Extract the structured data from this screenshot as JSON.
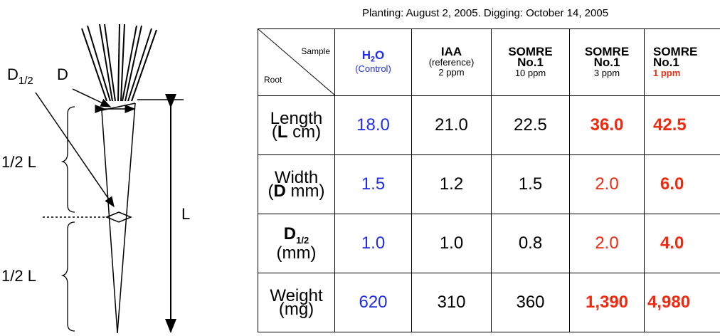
{
  "caption": "Planting: August 2, 2005. Digging: October 14, 2005",
  "diagram": {
    "d_label": "D",
    "d_half_main": "D",
    "d_half_sub": "1/2",
    "half_l_upper": "1/2 L",
    "half_l_lower": "1/2 L",
    "l_label": "L"
  },
  "table": {
    "corner_top": "Sample",
    "corner_bottom": "Root",
    "columns": [
      {
        "main": "H",
        "sub": "2",
        "rest": "O",
        "note": "(Control)"
      },
      {
        "line1": "IAA",
        "line2": "(reference)",
        "line3": "2 ppm"
      },
      {
        "line1": "SOMRE",
        "line2": "No.1",
        "line3": "10 ppm"
      },
      {
        "line1": "SOMRE",
        "line2": "No.1",
        "line3": "3 ppm"
      },
      {
        "line1": "SOMRE",
        "line2": "No.1",
        "line3": "1 ppm"
      }
    ],
    "rows": [
      {
        "label": "Length",
        "unit_open": "(",
        "unit_bold": "L",
        "unit_rest": " cm)",
        "values": [
          "18.0",
          "21.0",
          "22.5",
          "36.0",
          "42.5"
        ]
      },
      {
        "label": "Width",
        "unit_open": "(",
        "unit_bold": "D",
        "unit_rest": " mm)",
        "values": [
          "1.5",
          "1.2",
          "1.5",
          "2.0",
          "6.0"
        ]
      },
      {
        "label_main": "D",
        "label_sub": "1/2",
        "unit": "(mm)",
        "values": [
          "1.0",
          "1.0",
          "0.8",
          "2.0",
          "4.0"
        ]
      },
      {
        "label": "Weight",
        "unit": "(mg)",
        "values": [
          "620",
          "310",
          "360",
          "1,390",
          "4,980"
        ]
      }
    ]
  }
}
